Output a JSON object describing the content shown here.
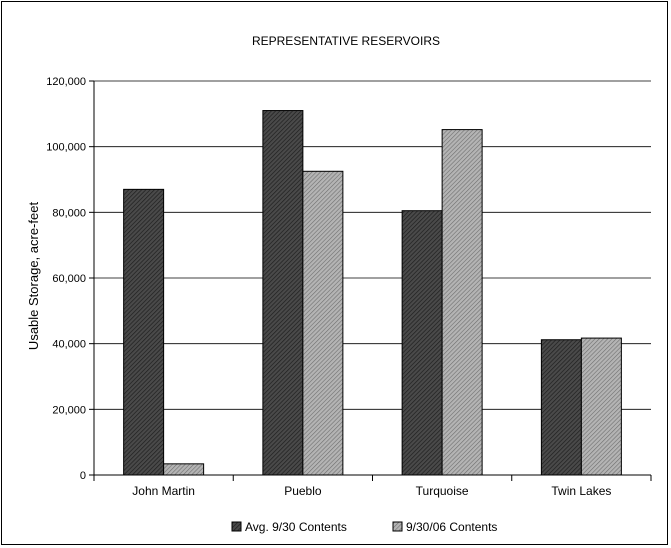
{
  "chart_data": {
    "type": "bar",
    "title": "REPRESENTATIVE RESERVOIRS",
    "xlabel": "",
    "ylabel": "Usable Storage, acre-feet",
    "categories": [
      "John Martin",
      "Pueblo",
      "Turquoise",
      "Twin Lakes"
    ],
    "series": [
      {
        "name": "Avg. 9/30 Contents",
        "values": [
          87000,
          111000,
          80500,
          41200
        ],
        "color": "#3a3a3a"
      },
      {
        "name": "9/30/06 Contents",
        "values": [
          3400,
          92500,
          105200,
          41700
        ],
        "color": "#9a9a9a"
      }
    ],
    "ylim": [
      0,
      120000
    ],
    "yticks": [
      0,
      20000,
      40000,
      60000,
      80000,
      100000,
      120000
    ],
    "ytick_labels": [
      "0",
      "20,000",
      "40,000",
      "60,000",
      "80,000",
      "100,000",
      "120,000"
    ],
    "grid": true,
    "legend": "bottom"
  }
}
